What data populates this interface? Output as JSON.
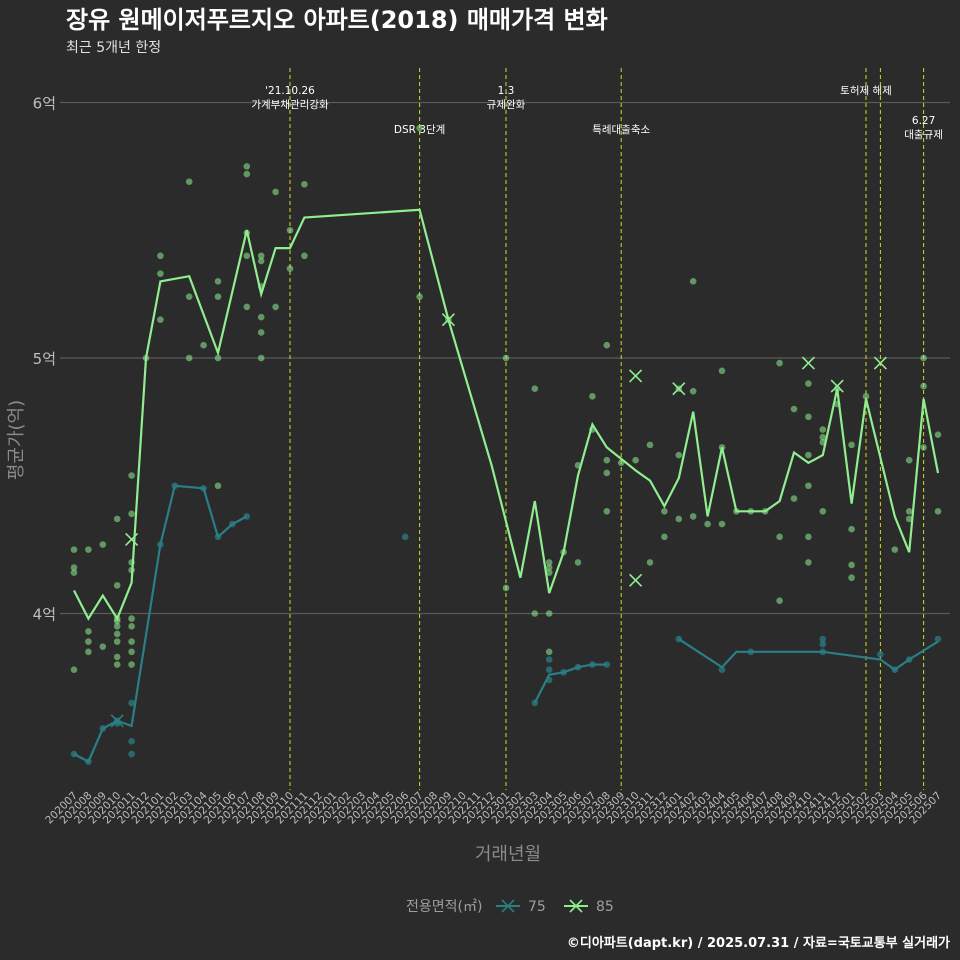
{
  "chart_data": {
    "type": "line",
    "title": "장유 원메이저푸르지오 아파트(2018) 매매가격 변화",
    "subtitle": "최근 5개년 한정",
    "xlabel": "거래년월",
    "ylabel": "평균가(억)",
    "caption": "©디아파트(dapt.kr) / 2025.07.31 / 자료=국토교통부 실거래가",
    "legend_title": "전용면적(㎡)",
    "legend_position": "bottom",
    "grid": true,
    "ylim": [
      3.3,
      6.2
    ],
    "y_ticks": [
      {
        "value": 4,
        "label": "4억"
      },
      {
        "value": 5,
        "label": "5억"
      },
      {
        "value": 6,
        "label": "6억"
      }
    ],
    "categories": [
      "202007",
      "202008",
      "202009",
      "202010",
      "202011",
      "202012",
      "202101",
      "202102",
      "202103",
      "202104",
      "202105",
      "202106",
      "202107",
      "202108",
      "202109",
      "202110",
      "202111",
      "202112",
      "202201",
      "202202",
      "202203",
      "202204",
      "202205",
      "202206",
      "202207",
      "202208",
      "202209",
      "202210",
      "202211",
      "202212",
      "202301",
      "202302",
      "202303",
      "202304",
      "202305",
      "202306",
      "202307",
      "202308",
      "202309",
      "202310",
      "202311",
      "202312",
      "202401",
      "202402",
      "202403",
      "202404",
      "202405",
      "202406",
      "202407",
      "202408",
      "202409",
      "202410",
      "202411",
      "202412",
      "202501",
      "202502",
      "202503",
      "202504",
      "202505",
      "202506",
      "202507"
    ],
    "series": [
      {
        "name": "75",
        "color": "#2a7f86",
        "segments": [
          [
            [
              0,
              3.45
            ],
            [
              1,
              3.42
            ],
            [
              2,
              3.55
            ],
            [
              3,
              3.57
            ],
            [
              4,
              3.55
            ],
            [
              5,
              3.57
            ],
            [
              6,
              4.27
            ],
            [
              7,
              4.5
            ],
            [
              8,
              4.49
            ],
            [
              9,
              4.48
            ],
            [
              10,
              4.3
            ],
            [
              11,
              4.35
            ],
            [
              12,
              4.38
            ]
          ],
          [
            [
              0,
              3.45
            ],
            [
              1,
              3.42
            ],
            [
              2,
              3.55
            ],
            [
              3,
              3.58
            ],
            [
              4,
              3.58
            ],
            [
              4.3,
              3.62
            ],
            [
              6,
              4.27
            ],
            [
              7,
              4.5
            ],
            [
              8,
              4.49
            ],
            [
              9,
              4.48
            ],
            [
              10,
              4.3
            ],
            [
              11,
              4.35
            ],
            [
              12,
              4.38
            ]
          ]
        ],
        "points": [
          [
            0,
            3.45
          ],
          [
            1,
            3.42
          ],
          [
            2,
            3.55
          ],
          [
            3,
            3.58
          ],
          [
            3,
            3.57
          ],
          [
            4,
            3.45
          ],
          [
            4,
            3.5
          ],
          [
            4,
            3.65
          ],
          [
            6,
            4.27
          ],
          [
            7,
            4.5
          ],
          [
            9,
            4.49
          ],
          [
            10,
            4.3
          ],
          [
            11,
            4.35
          ],
          [
            12,
            4.38
          ],
          [
            23,
            4.3
          ],
          [
            32,
            3.65
          ],
          [
            33,
            3.78
          ],
          [
            33,
            3.74
          ],
          [
            33,
            3.82
          ],
          [
            34,
            3.77
          ],
          [
            35,
            3.79
          ],
          [
            36,
            3.8
          ],
          [
            37,
            3.8
          ],
          [
            42,
            3.9
          ],
          [
            45,
            3.78
          ],
          [
            47,
            3.85
          ],
          [
            52,
            3.85
          ],
          [
            52,
            3.88
          ],
          [
            52,
            3.9
          ],
          [
            56,
            3.84
          ],
          [
            57,
            3.78
          ],
          [
            58,
            3.82
          ],
          [
            60,
            3.9
          ]
        ],
        "lines": [
          [
            [
              0,
              3.45
            ],
            [
              1,
              3.42
            ],
            [
              2,
              3.55
            ],
            [
              3,
              3.58
            ],
            [
              4,
              3.56
            ],
            [
              6,
              4.27
            ],
            [
              7,
              4.5
            ],
            [
              9,
              4.49
            ],
            [
              10,
              4.3
            ],
            [
              11,
              4.35
            ],
            [
              12,
              4.38
            ]
          ],
          [
            [
              32,
              3.65
            ],
            [
              33,
              3.76
            ],
            [
              34,
              3.77
            ],
            [
              35,
              3.79
            ],
            [
              36,
              3.8
            ],
            [
              37,
              3.8
            ]
          ],
          [
            [
              42,
              3.9
            ],
            [
              45,
              3.79
            ],
            [
              46,
              3.85
            ],
            [
              52,
              3.85
            ],
            [
              56,
              3.82
            ],
            [
              57,
              3.78
            ],
            [
              58,
              3.82
            ],
            [
              60,
              3.89
            ]
          ]
        ],
        "markers_x": [
          [
            3,
            3.58
          ]
        ]
      },
      {
        "name": "85",
        "color": "#90ee90",
        "points": [
          [
            0,
            4.25
          ],
          [
            0,
            4.18
          ],
          [
            0,
            4.16
          ],
          [
            0,
            3.78
          ],
          [
            1,
            4.25
          ],
          [
            1,
            3.93
          ],
          [
            1,
            3.89
          ],
          [
            1,
            3.85
          ],
          [
            2,
            4.27
          ],
          [
            2,
            3.87
          ],
          [
            3,
            4.37
          ],
          [
            3,
            4.11
          ],
          [
            3,
            3.98
          ],
          [
            3,
            3.97
          ],
          [
            3,
            3.95
          ],
          [
            3,
            3.92
          ],
          [
            3,
            3.89
          ],
          [
            3,
            3.83
          ],
          [
            3,
            3.8
          ],
          [
            4,
            4.54
          ],
          [
            4,
            4.39
          ],
          [
            4,
            4.2
          ],
          [
            4,
            4.17
          ],
          [
            4,
            3.98
          ],
          [
            4,
            3.95
          ],
          [
            4,
            3.89
          ],
          [
            4,
            3.85
          ],
          [
            4,
            3.8
          ],
          [
            5,
            5.0
          ],
          [
            6,
            5.4
          ],
          [
            6,
            5.33
          ],
          [
            6,
            5.15
          ],
          [
            8,
            5.69
          ],
          [
            8,
            5.24
          ],
          [
            8,
            5.0
          ],
          [
            9,
            5.05
          ],
          [
            10,
            5.3
          ],
          [
            10,
            5.24
          ],
          [
            10,
            5.0
          ],
          [
            10,
            4.5
          ],
          [
            12,
            5.75
          ],
          [
            12,
            5.72
          ],
          [
            12,
            5.49
          ],
          [
            12,
            5.4
          ],
          [
            12,
            5.2
          ],
          [
            13,
            5.4
          ],
          [
            13,
            5.38
          ],
          [
            13,
            5.28
          ],
          [
            13,
            5.16
          ],
          [
            13,
            5.1
          ],
          [
            13,
            5.0
          ],
          [
            14,
            5.65
          ],
          [
            14,
            5.2
          ],
          [
            15,
            5.5
          ],
          [
            15,
            5.35
          ],
          [
            16,
            5.68
          ],
          [
            16,
            5.4
          ],
          [
            24,
            5.9
          ],
          [
            24,
            5.24
          ],
          [
            26,
            5.15
          ],
          [
            30,
            5.0
          ],
          [
            30,
            4.1
          ],
          [
            32,
            4.88
          ],
          [
            32,
            4.0
          ],
          [
            33,
            4.2
          ],
          [
            33,
            4.18
          ],
          [
            33,
            4.16
          ],
          [
            33,
            4.0
          ],
          [
            33,
            3.85
          ],
          [
            34,
            4.24
          ],
          [
            35,
            4.58
          ],
          [
            35,
            4.2
          ],
          [
            36,
            4.85
          ],
          [
            36,
            4.72
          ],
          [
            37,
            5.05
          ],
          [
            37,
            4.6
          ],
          [
            37,
            4.55
          ],
          [
            37,
            4.4
          ],
          [
            38,
            4.59
          ],
          [
            39,
            4.6
          ],
          [
            40,
            4.66
          ],
          [
            40,
            4.2
          ],
          [
            41,
            4.3
          ],
          [
            41,
            4.4
          ],
          [
            42,
            4.88
          ],
          [
            42,
            4.62
          ],
          [
            42,
            4.37
          ],
          [
            43,
            5.3
          ],
          [
            43,
            4.87
          ],
          [
            43,
            4.38
          ],
          [
            44,
            4.35
          ],
          [
            45,
            4.95
          ],
          [
            45,
            4.65
          ],
          [
            45,
            4.35
          ],
          [
            46,
            4.4
          ],
          [
            47,
            4.4
          ],
          [
            48,
            4.4
          ],
          [
            49,
            4.98
          ],
          [
            49,
            4.3
          ],
          [
            49,
            4.05
          ],
          [
            50,
            4.8
          ],
          [
            50,
            4.45
          ],
          [
            51,
            4.9
          ],
          [
            51,
            4.77
          ],
          [
            51,
            4.62
          ],
          [
            51,
            4.5
          ],
          [
            51,
            4.3
          ],
          [
            51,
            4.2
          ],
          [
            52,
            4.72
          ],
          [
            52,
            4.69
          ],
          [
            52,
            4.67
          ],
          [
            52,
            4.4
          ],
          [
            53,
            4.88
          ],
          [
            53,
            4.82
          ],
          [
            54,
            4.66
          ],
          [
            54,
            4.33
          ],
          [
            54,
            4.19
          ],
          [
            54,
            4.14
          ],
          [
            55,
            4.85
          ],
          [
            57,
            4.25
          ],
          [
            58,
            4.6
          ],
          [
            58,
            4.4
          ],
          [
            58,
            4.37
          ],
          [
            59,
            5.0
          ],
          [
            59,
            4.89
          ],
          [
            59,
            4.65
          ],
          [
            60,
            4.7
          ],
          [
            60,
            4.4
          ]
        ],
        "line": [
          [
            0,
            4.09
          ],
          [
            1,
            3.98
          ],
          [
            2,
            4.07
          ],
          [
            3,
            3.98
          ],
          [
            4,
            4.12
          ],
          [
            5,
            5.0
          ],
          [
            6,
            5.3
          ],
          [
            7,
            5.31
          ],
          [
            8,
            5.32
          ],
          [
            10,
            5.02
          ],
          [
            12,
            5.5
          ],
          [
            13,
            5.25
          ],
          [
            14,
            5.43
          ],
          [
            15,
            5.43
          ],
          [
            16,
            5.55
          ],
          [
            24,
            5.58
          ],
          [
            26,
            5.15
          ],
          [
            29,
            4.58
          ],
          [
            31,
            4.14
          ],
          [
            32,
            4.44
          ],
          [
            33,
            4.08
          ],
          [
            34,
            4.24
          ],
          [
            35,
            4.54
          ],
          [
            36,
            4.74
          ],
          [
            37,
            4.65
          ],
          [
            39,
            4.56
          ],
          [
            40,
            4.52
          ],
          [
            41,
            4.42
          ],
          [
            42,
            4.53
          ],
          [
            43,
            4.79
          ],
          [
            44,
            4.38
          ],
          [
            45,
            4.65
          ],
          [
            46,
            4.4
          ],
          [
            47,
            4.4
          ],
          [
            48,
            4.4
          ],
          [
            49,
            4.44
          ],
          [
            50,
            4.63
          ],
          [
            51,
            4.59
          ],
          [
            52,
            4.62
          ],
          [
            53,
            4.88
          ],
          [
            54,
            4.43
          ],
          [
            55,
            4.84
          ],
          [
            57,
            4.38
          ],
          [
            58,
            4.24
          ],
          [
            59,
            4.84
          ],
          [
            60,
            4.55
          ]
        ],
        "markers_x": [
          [
            4,
            4.29
          ],
          [
            26,
            5.15
          ],
          [
            39,
            4.93
          ],
          [
            39,
            4.13
          ],
          [
            42,
            4.88
          ],
          [
            51,
            4.98
          ],
          [
            53,
            4.89
          ],
          [
            56,
            4.98
          ]
        ]
      }
    ],
    "events": [
      {
        "x": 15,
        "lines": [
          "'21.10.26",
          "가계부채관리강화"
        ],
        "row": 1
      },
      {
        "x": 24,
        "lines": [
          "DSR 3단계"
        ],
        "row": 2
      },
      {
        "x": 30,
        "lines": [
          "1.3",
          "규제완화"
        ],
        "row": 1
      },
      {
        "x": 38,
        "lines": [
          "특례대출축소"
        ],
        "row": 2
      },
      {
        "x": 55,
        "lines": [
          "토허제 해제"
        ],
        "row": 1
      },
      {
        "x": 56,
        "lines": [],
        "row": 1
      },
      {
        "x": 59,
        "lines": [
          "6.27",
          "대출규제"
        ],
        "row": 3
      }
    ]
  }
}
